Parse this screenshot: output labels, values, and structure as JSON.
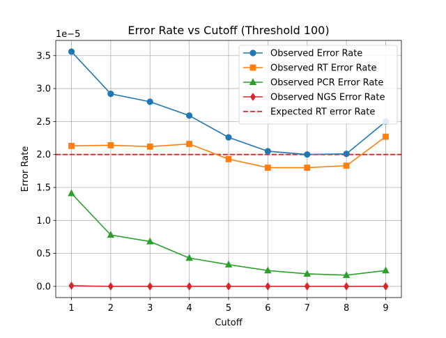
{
  "chart_data": {
    "type": "line",
    "title": "Error Rate vs Cutoff (Threshold 100)",
    "xlabel": "Cutoff",
    "ylabel": "Error Rate",
    "y_scale_label": "1e−5",
    "x": [
      1,
      2,
      3,
      4,
      5,
      6,
      7,
      8,
      9
    ],
    "xlim": [
      0.6,
      9.4
    ],
    "ylim": [
      -0.17,
      3.73
    ],
    "x_ticks": [
      1,
      2,
      3,
      4,
      5,
      6,
      7,
      8,
      9
    ],
    "y_ticks": [
      0.0,
      0.5,
      1.0,
      1.5,
      2.0,
      2.5,
      3.0,
      3.5
    ],
    "y_tick_labels": [
      "0.0",
      "0.5",
      "1.0",
      "1.5",
      "2.0",
      "2.5",
      "3.0",
      "3.5"
    ],
    "grid": true,
    "legend_position": "top-right",
    "series": [
      {
        "name": "Observed Error Rate",
        "color": "#1f77b4",
        "marker": "circle",
        "values": [
          3.56,
          2.92,
          2.8,
          2.59,
          2.26,
          2.05,
          2.0,
          2.01,
          2.5
        ]
      },
      {
        "name": "Observed RT Error Rate",
        "color": "#ff7f0e",
        "marker": "square",
        "values": [
          2.13,
          2.14,
          2.12,
          2.16,
          1.93,
          1.8,
          1.8,
          1.83,
          2.27
        ]
      },
      {
        "name": "Observed PCR Error Rate",
        "color": "#2ca02c",
        "marker": "triangle",
        "values": [
          1.41,
          0.78,
          0.68,
          0.43,
          0.33,
          0.24,
          0.19,
          0.17,
          0.24
        ]
      },
      {
        "name": "Observed NGS Error Rate",
        "color": "#d62728",
        "marker": "diamond",
        "values": [
          0.01,
          0.0,
          0.0,
          0.0,
          0.0,
          0.0,
          0.0,
          0.0,
          0.0
        ]
      }
    ],
    "reference_lines": [
      {
        "name": "Expected RT error Rate",
        "color": "#d62728",
        "style": "dashed",
        "y": 2.0
      }
    ]
  }
}
